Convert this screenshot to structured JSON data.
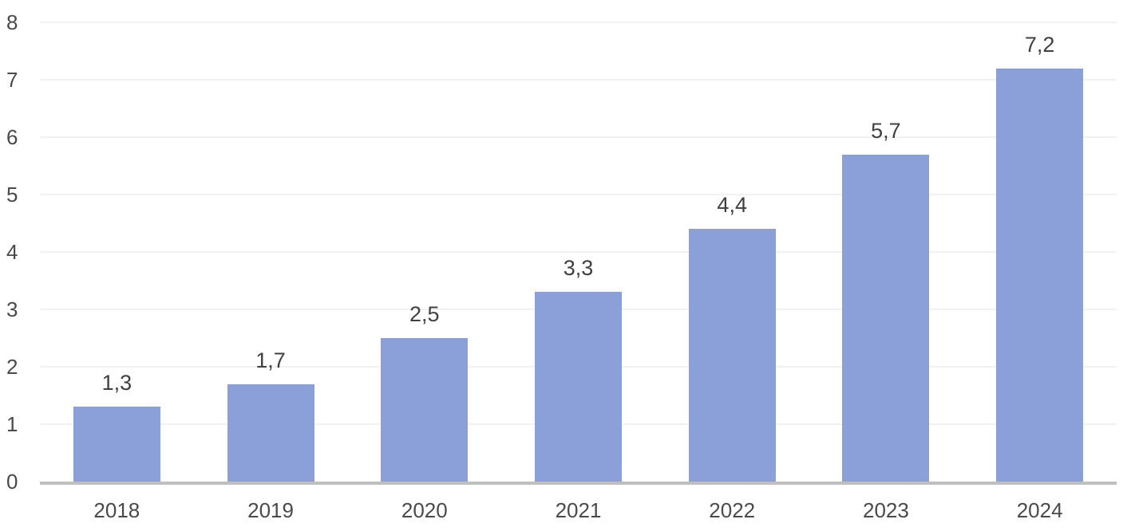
{
  "chart_data": {
    "type": "bar",
    "title": "",
    "xlabel": "",
    "ylabel": "",
    "categories": [
      "2018",
      "2019",
      "2020",
      "2021",
      "2022",
      "2023",
      "2024"
    ],
    "values": [
      1.3,
      1.7,
      2.5,
      3.3,
      4.4,
      5.7,
      7.2
    ],
    "value_labels": [
      "1,3",
      "1,7",
      "2,5",
      "3,3",
      "4,4",
      "5,7",
      "7,2"
    ],
    "y_ticks": [
      0,
      1,
      2,
      3,
      4,
      5,
      6,
      7,
      8
    ],
    "ylim": [
      0,
      8
    ],
    "grid": "horizontal-faint",
    "legend": "none",
    "decimal_separator": ",",
    "colors": {
      "bar_fill": "#8B9FD8",
      "gridline": "#F2F2F2",
      "axis_line": "#BFBFBF",
      "value_label_text": "#404040",
      "tick_label_text": "#4A4A4A",
      "background": "#FFFFFF"
    }
  }
}
